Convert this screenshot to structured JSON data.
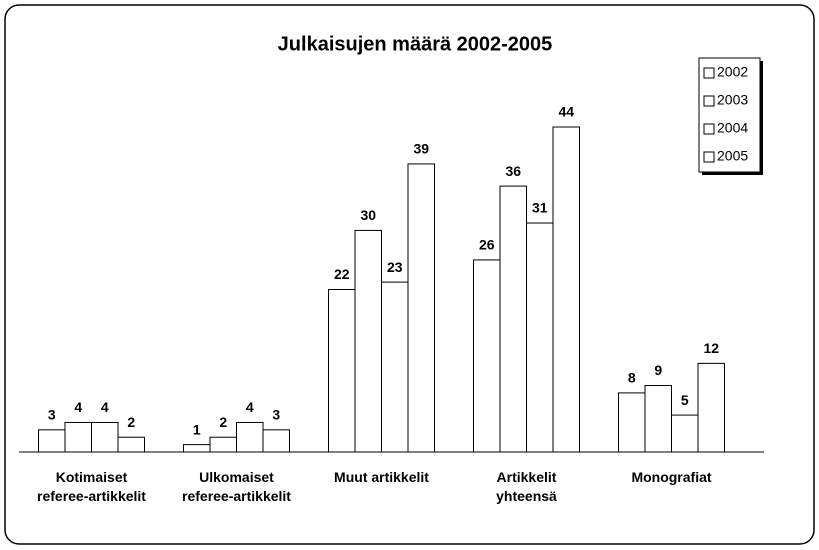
{
  "chart_data": {
    "type": "bar",
    "title": "Julkaisujen määrä 2002-2005",
    "categories": [
      "Kotimaiset referee-artikkelit",
      "Ulkomaiset referee-artikkelit",
      "Muut artikkelit",
      "Artikkelit yhteensä",
      "Monografiat"
    ],
    "series": [
      {
        "name": "2002",
        "color": "#ffffff",
        "values": [
          3,
          1,
          22,
          26,
          8
        ]
      },
      {
        "name": "2003",
        "color": "#ffffff",
        "values": [
          4,
          2,
          30,
          36,
          9
        ]
      },
      {
        "name": "2004",
        "color": "#ffffff",
        "values": [
          4,
          4,
          23,
          31,
          5
        ]
      },
      {
        "name": "2005",
        "color": "#ffffff",
        "values": [
          2,
          3,
          39,
          44,
          12
        ]
      }
    ],
    "legend": "top-right"
  }
}
